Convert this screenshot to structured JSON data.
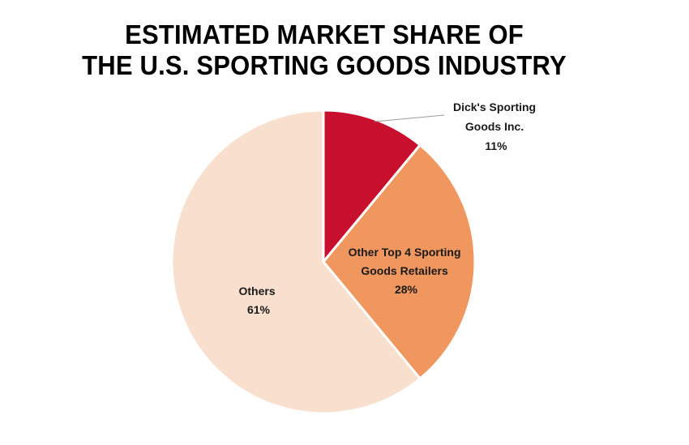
{
  "chart_data": {
    "type": "pie",
    "title_lines": [
      "ESTIMATED MARKET SHARE OF",
      "THE U.S. SPORTING GOODS INDUSTRY"
    ],
    "slices": [
      {
        "label_lines": [
          "Dick's Sporting",
          "Goods Inc."
        ],
        "value": 11,
        "value_label": "11%",
        "color": "#c8102e"
      },
      {
        "label_lines": [
          "Other Top 4 Sporting",
          "Goods Retailers"
        ],
        "value": 28,
        "value_label": "28%",
        "color": "#f0975f"
      },
      {
        "label_lines": [
          "Others"
        ],
        "value": 61,
        "value_label": "61%",
        "color": "#f9dfcd"
      }
    ]
  }
}
